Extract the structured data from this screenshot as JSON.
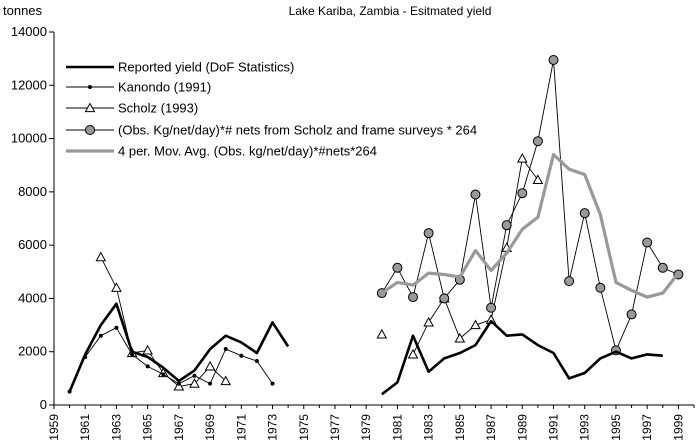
{
  "chart_data": {
    "type": "line",
    "title": "Lake Kariba, Zambia - Esitmated yield",
    "ylabel": "tonnes",
    "xlabel": "",
    "xlim": [
      1959,
      2000
    ],
    "ylim": [
      0,
      14000
    ],
    "y_ticks": [
      0,
      2000,
      4000,
      6000,
      8000,
      10000,
      12000,
      14000
    ],
    "y_tick_labels": [
      "0",
      "2000",
      "4000",
      "6000",
      "8000",
      "10000",
      "12000",
      "14000"
    ],
    "x_ticks": [
      1959,
      1961,
      1963,
      1965,
      1967,
      1969,
      1971,
      1973,
      1975,
      1977,
      1979,
      1981,
      1983,
      1985,
      1987,
      1989,
      1991,
      1993,
      1995,
      1997,
      1999
    ],
    "x_tick_labels": [
      "1959",
      "1961",
      "1963",
      "1965",
      "1967",
      "1969",
      "1971",
      "1973",
      "1975",
      "1977",
      "1979",
      "1981",
      "1983",
      "1985",
      "1987",
      "1989",
      "1991",
      "1993",
      "1995",
      "1997",
      "1999"
    ],
    "grid": false,
    "legend_position": "top-left",
    "series": [
      {
        "name": "Reported yield (DoF Statistics)",
        "color": "#000000",
        "style": "thick-line",
        "segments": [
          {
            "x": [
              1960,
              1961,
              1962,
              1963,
              1964,
              1965,
              1966,
              1967,
              1968,
              1969,
              1970,
              1971,
              1972,
              1973,
              1974
            ],
            "y": [
              500,
              1900,
              3000,
              3800,
              2000,
              1800,
              1400,
              900,
              1300,
              2100,
              2600,
              2350,
              1950,
              3100,
              2200
            ]
          },
          {
            "x": [
              1980,
              1981,
              1982,
              1983,
              1984,
              1985,
              1986,
              1987,
              1988,
              1989,
              1990,
              1991,
              1992,
              1993,
              1994,
              1995,
              1996,
              1997,
              1998
            ],
            "y": [
              400,
              850,
              2600,
              1250,
              1750,
              1950,
              2250,
              3150,
              2600,
              2650,
              2250,
              1950,
              1000,
              1200,
              1750,
              2000,
              1750,
              1900,
              1850
            ]
          }
        ]
      },
      {
        "name": "Kanondo (1991)",
        "color": "#000000",
        "style": "thin-line-small-dot",
        "segments": [
          {
            "x": [
              1960,
              1961,
              1962,
              1963,
              1964,
              1965,
              1966,
              1967,
              1968,
              1969,
              1970,
              1971,
              1972,
              1973
            ],
            "y": [
              500,
              1800,
              2600,
              2900,
              1900,
              1450,
              1150,
              800,
              1100,
              800,
              2100,
              1850,
              1650,
              800
            ]
          }
        ]
      },
      {
        "name": "Scholz (1993)",
        "color": "#000000",
        "style": "thin-line-open-triangle",
        "segments": [
          {
            "x": [
              1962,
              1963,
              1964,
              1965,
              1966,
              1967,
              1968,
              1969,
              1970
            ],
            "y": [
              5550,
              4400,
              1950,
              2050,
              1200,
              700,
              800,
              1450,
              900
            ]
          },
          {
            "x": [
              1980
            ],
            "y": [
              2650
            ]
          },
          {
            "x": [
              1982,
              1983,
              1984,
              1985,
              1986,
              1987,
              1988,
              1989,
              1990
            ],
            "y": [
              1900,
              3100,
              4000,
              2500,
              3000,
              3200,
              5900,
              9250,
              8450
            ]
          }
        ]
      },
      {
        "name": "(Obs. Kg/net/day)*# nets from Scholz and frame surveys * 264",
        "color": "#000000",
        "marker_fill": "#999999",
        "style": "thin-line-grey-circle",
        "segments": [
          {
            "x": [
              1980,
              1981,
              1982,
              1983,
              1984,
              1985,
              1986,
              1987,
              1988,
              1989,
              1990,
              1991,
              1992,
              1993,
              1994,
              1995,
              1996,
              1997,
              1998,
              1999
            ],
            "y": [
              4200,
              5150,
              4050,
              6450,
              4000,
              4700,
              7900,
              3650,
              6750,
              7950,
              9900,
              12950,
              4650,
              7200,
              4400,
              2050,
              3400,
              6100,
              5150,
              4900
            ]
          }
        ]
      },
      {
        "name": "4 per. Mov. Avg. (Obs. kg/net/day)*#nets*264",
        "color": "#999999",
        "style": "thick-grey-line",
        "segments": [
          {
            "x": [
              1980,
              1981,
              1982,
              1983,
              1984,
              1985,
              1986,
              1987,
              1988,
              1989,
              1990,
              1991,
              1992,
              1993,
              1994,
              1995,
              1996,
              1997,
              1998,
              1999
            ],
            "y": [
              4200,
              4600,
              4500,
              4950,
              4900,
              4800,
              5800,
              5050,
              5700,
              6600,
              7050,
              9400,
              8850,
              8650,
              7150,
              4600,
              4300,
              4050,
              4200,
              4950
            ]
          }
        ]
      }
    ]
  }
}
